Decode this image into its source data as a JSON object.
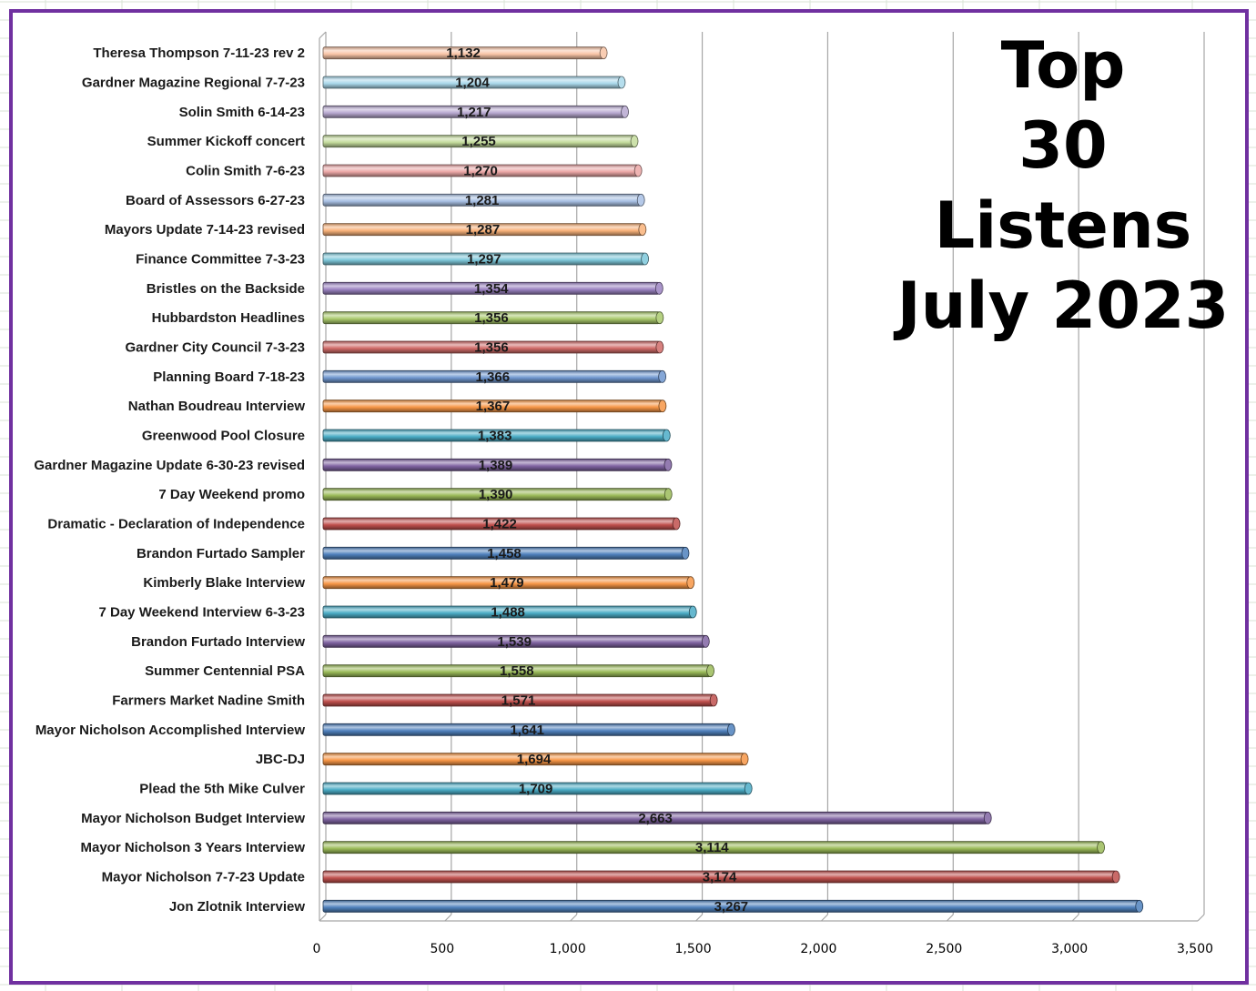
{
  "colors": {
    "frame": "#7030a0",
    "gridline": "#a6a6a6",
    "series_palette": [
      "#4f81bd",
      "#c0504d",
      "#9bbb59",
      "#8064a2",
      "#4bacc6",
      "#f79646"
    ]
  },
  "chart_data": {
    "type": "bar",
    "orientation": "horizontal",
    "style": "3d-cylinder",
    "title_lines": [
      "Top",
      "30",
      "Listens",
      "July 2023"
    ],
    "xlabel": "",
    "ylabel": "",
    "xlim": [
      0,
      3500
    ],
    "xticks": [
      0,
      500,
      1000,
      1500,
      2000,
      2500,
      3000,
      3500
    ],
    "xtick_labels": [
      "0",
      "500",
      "1,000",
      "1,500",
      "2,000",
      "2,500",
      "3,000",
      "3,500"
    ],
    "grid": "vertical major gridlines",
    "legend": "none",
    "categories": [
      "Theresa Thompson 7-11-23 rev 2",
      "Gardner Magazine Regional 7-7-23",
      "Solin Smith 6-14-23",
      "Summer Kickoff concert",
      "Colin Smith 7-6-23",
      "Board of Assessors 6-27-23",
      "Mayors Update 7-14-23 revised",
      "Finance Committee 7-3-23",
      "Bristles on the Backside",
      "Hubbardston Headlines",
      "Gardner City Council 7-3-23",
      "Planning Board 7-18-23",
      "Nathan Boudreau Interview",
      "Greenwood Pool Closure",
      "Gardner Magazine Update 6-30-23 revised",
      "7 Day Weekend promo",
      "Dramatic - Declaration of Independence",
      "Brandon Furtado Sampler",
      "Kimberly Blake Interview",
      "7 Day Weekend Interview 6-3-23",
      "Brandon Furtado Interview",
      "Summer Centennial PSA",
      "Farmers Market Nadine Smith",
      "Mayor Nicholson Accomplished Interview",
      "JBC-DJ",
      "Plead the 5th Mike Culver",
      "Mayor Nicholson Budget Interview",
      "Mayor Nicholson 3 Years Interview",
      "Mayor Nicholson 7-7-23 Update",
      "Jon Zlotnik Interview"
    ],
    "values": [
      1132,
      1204,
      1217,
      1255,
      1270,
      1281,
      1287,
      1297,
      1354,
      1356,
      1356,
      1366,
      1367,
      1383,
      1389,
      1390,
      1422,
      1458,
      1479,
      1488,
      1539,
      1558,
      1571,
      1641,
      1694,
      1709,
      2663,
      3114,
      3174,
      3267
    ],
    "value_labels": [
      "1,132",
      "1,204",
      "1,217",
      "1,255",
      "1,270",
      "1,281",
      "1,287",
      "1,297",
      "1,354",
      "1,356",
      "1,356",
      "1,366",
      "1,367",
      "1,383",
      "1,389",
      "1,390",
      "1,422",
      "1,458",
      "1,479",
      "1,488",
      "1,539",
      "1,558",
      "1,571",
      "1,641",
      "1,694",
      "1,709",
      "2,663",
      "3,114",
      "3,174",
      "3,267"
    ],
    "bar_colors": [
      "#f8c4a6",
      "#a9d8ea",
      "#b7a8d0",
      "#c4dc9c",
      "#eba7a6",
      "#a8c0e4",
      "#f9b27a",
      "#7ec8da",
      "#9b82c1",
      "#a9c96c",
      "#d06b68",
      "#6f97d0",
      "#f79646",
      "#4bacc6",
      "#8064a2",
      "#9bbb59",
      "#c0504d",
      "#4f81bd",
      "#f79646",
      "#4bacc6",
      "#8064a2",
      "#9bbb59",
      "#c0504d",
      "#4f81bd",
      "#f79646",
      "#4bacc6",
      "#8064a2",
      "#9bbb59",
      "#c0504d",
      "#4f81bd"
    ]
  }
}
